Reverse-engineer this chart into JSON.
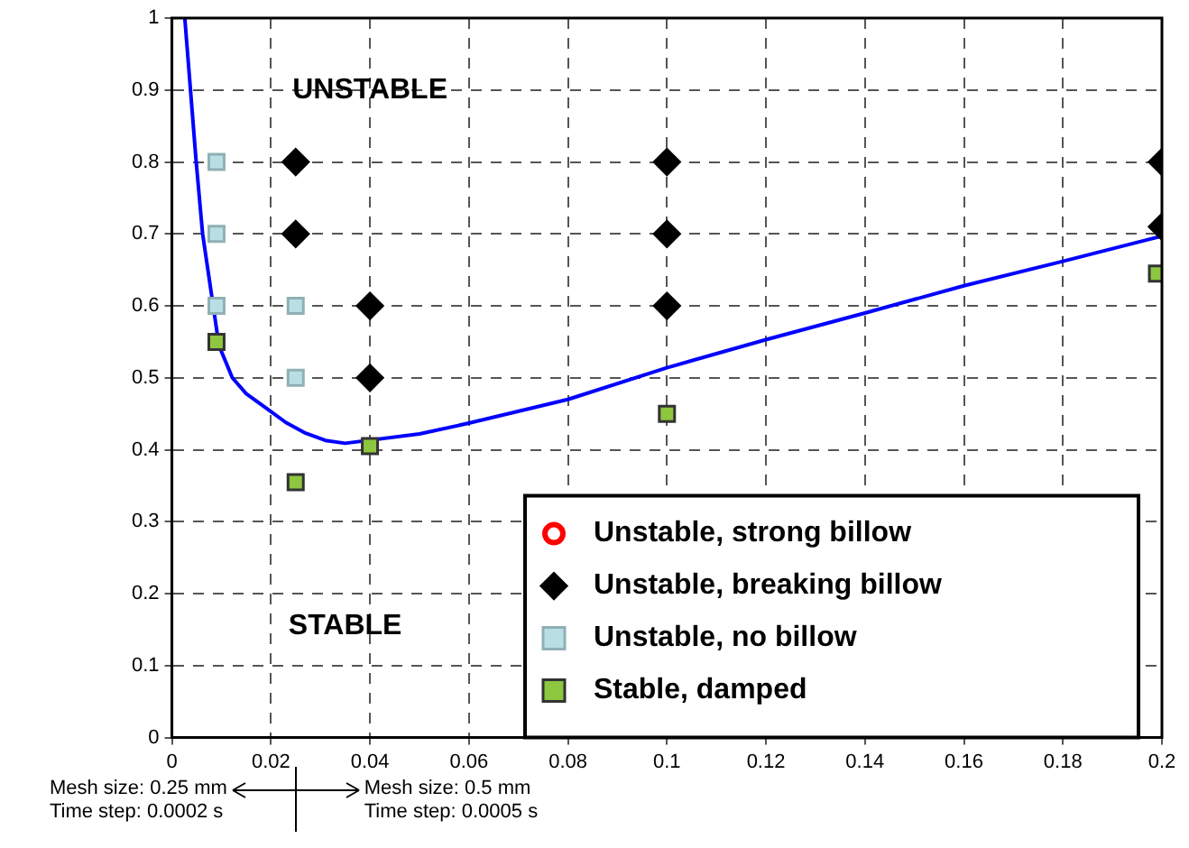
{
  "chart_data": {
    "type": "scatter",
    "xlim": [
      0,
      0.2
    ],
    "ylim": [
      0,
      1
    ],
    "xticks": [
      0,
      0.02,
      0.04,
      0.06,
      0.08,
      0.1,
      0.12,
      0.14,
      0.16,
      0.18,
      0.2
    ],
    "yticks": [
      0,
      0.1,
      0.2,
      0.3,
      0.4,
      0.5,
      0.6,
      0.7,
      0.8,
      0.9,
      1
    ],
    "grid": true,
    "legend": "bottom right",
    "series": [
      {
        "name": "Unstable, strong billow",
        "color": "#ff0000",
        "marker": "circle"
      },
      {
        "name": "Unstable, breaking billow",
        "color": "#000000",
        "marker": "diamond",
        "x": [
          0.025,
          0.025,
          0.04,
          0.04,
          0.1,
          0.1,
          0.1,
          0.2,
          0.2
        ],
        "values": [
          0.8,
          0.7,
          0.6,
          0.5,
          0.8,
          0.7,
          0.6,
          0.8,
          0.71
        ]
      },
      {
        "name": "Unstable, no billow",
        "color": "#b8e0e4",
        "marker": "square",
        "x": [
          0.009,
          0.009,
          0.009,
          0.025,
          0.025
        ],
        "values": [
          0.8,
          0.7,
          0.6,
          0.6,
          0.5
        ]
      },
      {
        "name": "Stable, damped",
        "color": "#8dc63f",
        "marker": "square",
        "x": [
          0.009,
          0.025,
          0.04,
          0.1,
          0.199
        ],
        "values": [
          0.55,
          0.355,
          0.405,
          0.45,
          0.645
        ]
      },
      {
        "type": "line",
        "color": "#0000ff",
        "marker": "none",
        "x": [
          0.0026,
          0.0049,
          0.0062,
          0.0095,
          0.0122,
          0.015,
          0.0196,
          0.023,
          0.027,
          0.031,
          0.035,
          0.05,
          0.06,
          0.08,
          0.1,
          0.12,
          0.14,
          0.16,
          0.18,
          0.2
        ],
        "values": [
          1,
          0.8,
          0.7,
          0.545,
          0.5,
          0.478,
          0.455,
          0.438,
          0.423,
          0.413,
          0.409,
          0.422,
          0.437,
          0.47,
          0.514,
          0.553,
          0.59,
          0.628,
          0.662,
          0.697
        ]
      }
    ],
    "annotations": [
      "UNSTABLE",
      "STABLE",
      "Mesh size: 0.25 mm",
      "Time step: 0.0002 s",
      "Mesh size: 0.5 mm",
      "Time step: 0.0005 s"
    ]
  }
}
